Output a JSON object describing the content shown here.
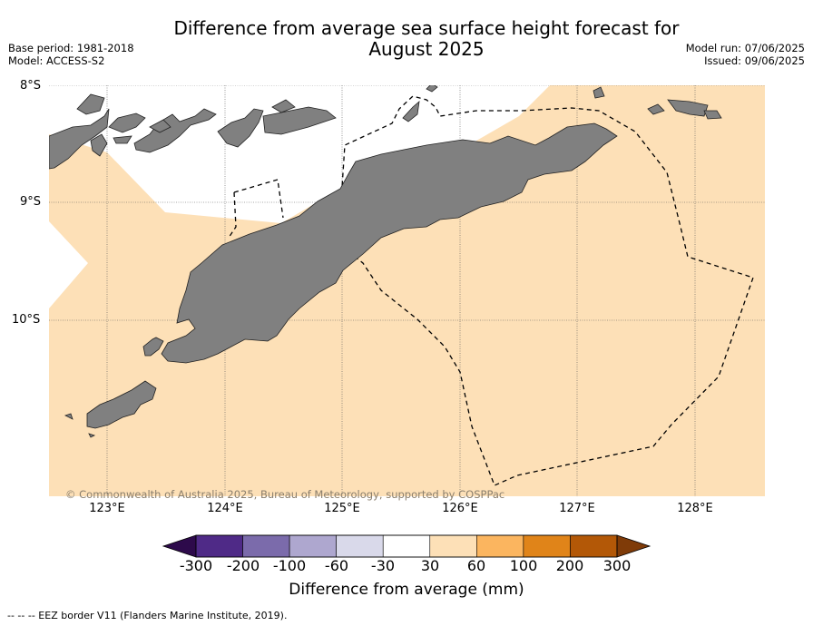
{
  "title_line1": "Difference from average sea surface height forecast for",
  "title_line2": "August 2025",
  "base_period": "Base period: 1981-2018",
  "model": "Model: ACCESS-S2",
  "model_run": "Model run: 07/06/2025",
  "issued": "Issued: 09/06/2025",
  "lat_labels": [
    "8°S",
    "9°S",
    "10°S"
  ],
  "lon_labels": [
    "123°E",
    "124°E",
    "125°E",
    "126°E",
    "127°E",
    "128°E"
  ],
  "copyright": "© Commonwealth of Australia 2025, Bureau of Meteorology, supported by COSPPac",
  "colorbar": {
    "title": "Difference from average (mm)",
    "ticks": [
      "-300",
      "-200",
      "-100",
      "-60",
      "-30",
      "30",
      "60",
      "100",
      "200",
      "300"
    ],
    "colors": [
      "#4f2a87",
      "#7b6bab",
      "#aea7cf",
      "#d9d9ea",
      "#ffffff",
      "#fde0b7",
      "#fbb55f",
      "#e08419",
      "#b35807"
    ],
    "under_color": "#2d0a4b",
    "over_color": "#7f3b08"
  },
  "footnote": "--  --  -- EEZ border V11 (Flanders Marine Institute, 2019).",
  "colors": {
    "land": "#808080",
    "anomaly_30_60": "#fde0b7",
    "anomaly_neutral": "#ffffff"
  }
}
